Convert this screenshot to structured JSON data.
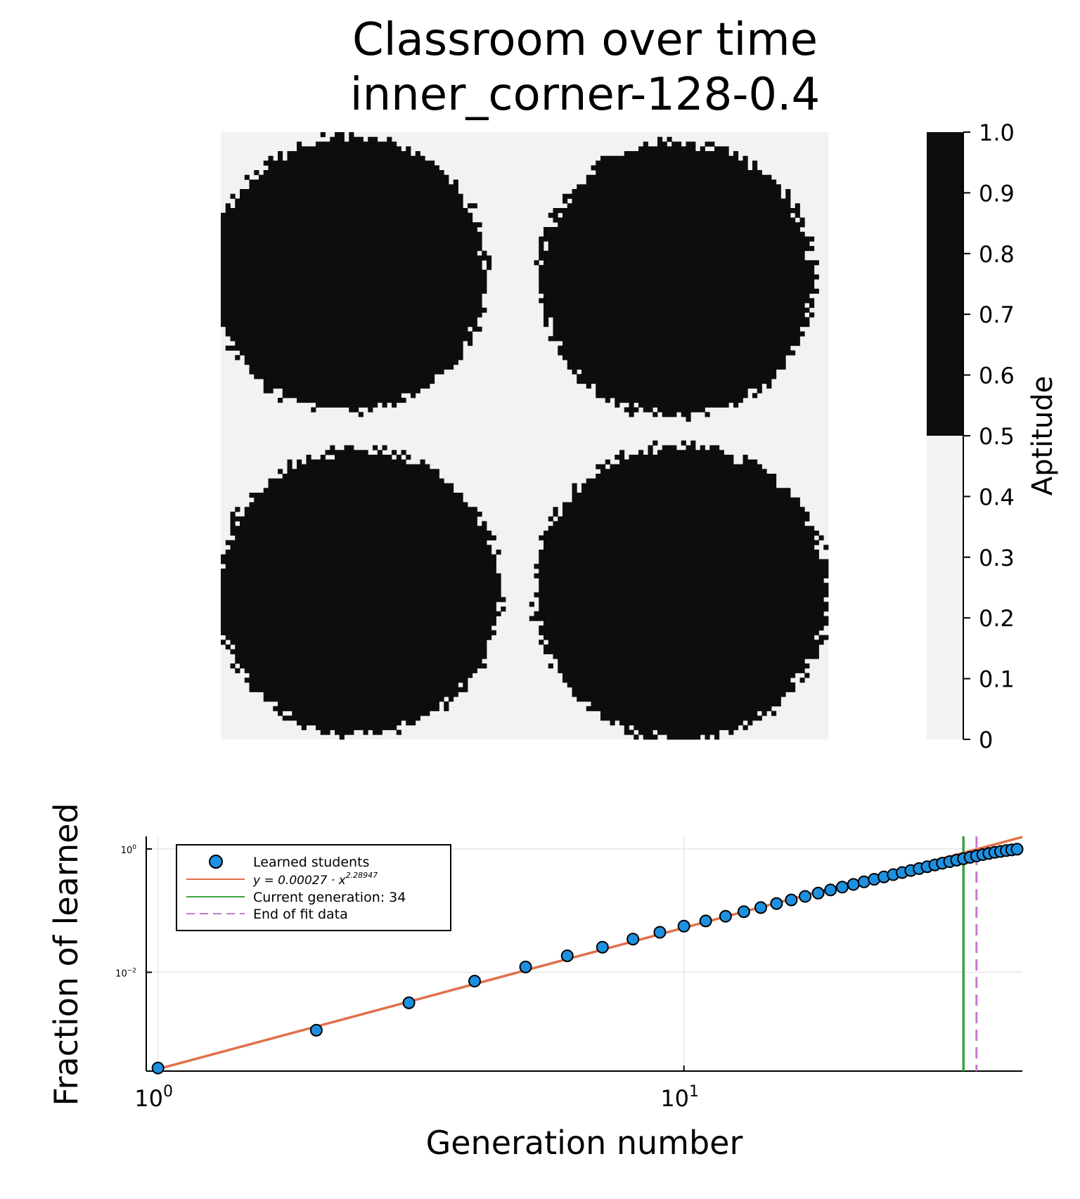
{
  "figure": {
    "title_line1": "Classroom over time",
    "title_line2": "inner_corner-128-0.4"
  },
  "colors": {
    "grid_dark": "#0d0d0d",
    "grid_light": "#f2f2f2",
    "scatter": "#1e90e0",
    "fit": "#e0714a",
    "current": "#3aa245",
    "end_fit": "#c37ad0"
  },
  "chart_data": [
    {
      "type": "heatmap",
      "title": "Classroom over time",
      "subtitle": "inner_corner-128-0.4",
      "grid_size": 128,
      "colorbar": {
        "label": "Aptitude",
        "range": [
          0,
          1
        ],
        "ticks": [
          "1.0",
          "0.9",
          "0.8",
          "0.7",
          "0.6",
          "0.5",
          "0.4",
          "0.3",
          "0.2",
          "0.1",
          "0"
        ],
        "threshold": 0.5
      },
      "blobs": [
        {
          "cx": 27,
          "cy": 30,
          "r": 29
        },
        {
          "cx": 96,
          "cy": 31,
          "r": 29
        },
        {
          "cx": 29,
          "cy": 97,
          "r": 30
        },
        {
          "cx": 97,
          "cy": 97,
          "r": 31
        }
      ]
    },
    {
      "type": "scatter",
      "xlabel": "Generation number",
      "ylabel": "Fraction of learned",
      "xscale": "log",
      "yscale": "log",
      "xlim": [
        0.95,
        44
      ],
      "ylim": [
        0.00025,
        1.6
      ],
      "x_ticks": [
        {
          "value": 1,
          "label": "10",
          "exp": "0"
        },
        {
          "value": 10,
          "label": "10",
          "exp": "1"
        }
      ],
      "y_ticks": [
        {
          "value": 1,
          "label": "10",
          "exp": "0"
        },
        {
          "value": 0.01,
          "label": "10",
          "exp": "−2"
        }
      ],
      "legend_position": "top-left",
      "legend": {
        "scatter": "Learned students",
        "fit_prefix": "y = 0.00027 · x",
        "fit_exp": "2.28947",
        "current": "Current generation: 34",
        "end": "End of fit data"
      },
      "fit": {
        "a": 0.00027,
        "b": 2.28947
      },
      "current_generation": 34,
      "end_of_fit": 36,
      "series": [
        {
          "name": "Learned students",
          "x": [
            1,
            2,
            3,
            4,
            5,
            6,
            7,
            8,
            9,
            10,
            11,
            12,
            13,
            14,
            15,
            16,
            17,
            18,
            19,
            20,
            21,
            22,
            23,
            24,
            25,
            26,
            27,
            28,
            29,
            30,
            31,
            32,
            33,
            34,
            35,
            36,
            37,
            38,
            39,
            40,
            41,
            42,
            43
          ],
          "y": [
            0.00028,
            0.00115,
            0.0032,
            0.0072,
            0.0122,
            0.0185,
            0.0255,
            0.0345,
            0.0445,
            0.056,
            0.068,
            0.081,
            0.096,
            0.112,
            0.13,
            0.149,
            0.17,
            0.192,
            0.216,
            0.24,
            0.266,
            0.293,
            0.322,
            0.352,
            0.383,
            0.414,
            0.447,
            0.48,
            0.515,
            0.55,
            0.586,
            0.622,
            0.658,
            0.693,
            0.73,
            0.77,
            0.81,
            0.845,
            0.88,
            0.91,
            0.94,
            0.965,
            0.99
          ]
        }
      ]
    }
  ]
}
